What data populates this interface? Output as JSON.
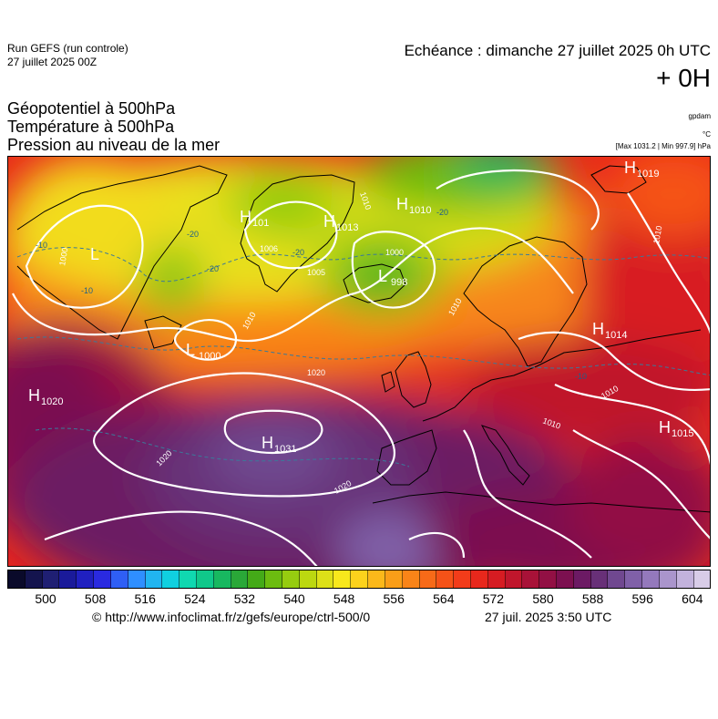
{
  "header": {
    "run_title": "Run GEFS (run controle)",
    "run_date": "27 juillet 2025 00Z",
    "echeance": "Echéance : dimanche 27 juillet 2025 0h UTC",
    "offset": "+ 0H"
  },
  "fields": [
    "Géopotentiel à 500hPa",
    "Température à 500hPa",
    "Pression au niveau de la mer"
  ],
  "units": {
    "geopotential": "gpdam",
    "temperature": "°C",
    "pressure_stats": "[Max 1031.2 | Min 997.9] hPa"
  },
  "pressure_systems": [
    {
      "type": "H",
      "value": "1020"
    },
    {
      "type": "L",
      "value": "1000"
    },
    {
      "type": "H",
      "value": "101"
    },
    {
      "type": "H",
      "value": "1013"
    },
    {
      "type": "H",
      "value": "1010"
    },
    {
      "type": "L",
      "value": "998"
    },
    {
      "type": "H",
      "value": "1019"
    },
    {
      "type": "H",
      "value": "1014"
    },
    {
      "type": "H",
      "value": "1015"
    },
    {
      "type": "H",
      "value": "1031"
    },
    {
      "type": "L",
      "value": ""
    }
  ],
  "isobar_labels": [
    "1000",
    "1006",
    "1005",
    "1010",
    "1010",
    "1020",
    "1020",
    "1020",
    "1010",
    "1010",
    "1010",
    "1000",
    "1010"
  ],
  "temperature_labels": [
    "-20",
    "-20",
    "-20",
    "-20",
    "-10",
    "-10",
    "-10"
  ],
  "color_scale": {
    "colors": [
      "#0a0a2a",
      "#14144e",
      "#1f1f73",
      "#1a1a9a",
      "#2020c0",
      "#2a2ae0",
      "#2f5ff5",
      "#2f8fff",
      "#21b5f0",
      "#10d0e0",
      "#10d8b0",
      "#10c88a",
      "#18b860",
      "#2aa838",
      "#44aa18",
      "#6cbc10",
      "#96cc10",
      "#bcd810",
      "#dde018",
      "#f8e81c",
      "#fcd21c",
      "#fbb81a",
      "#fa9e18",
      "#f98418",
      "#f76a18",
      "#f55218",
      "#f23c1a",
      "#e8281c",
      "#d61c22",
      "#c0162c",
      "#a81238",
      "#921044",
      "#7c1050",
      "#6c1a64",
      "#683078",
      "#704890",
      "#8060a8",
      "#9479bc",
      "#aa95cc",
      "#c2b2dc",
      "#d8cce8"
    ],
    "labels": [
      "500",
      "508",
      "516",
      "524",
      "532",
      "540",
      "548",
      "556",
      "564",
      "572",
      "580",
      "588",
      "596",
      "604"
    ]
  },
  "footer": {
    "copyright": "© http://www.infoclimat.fr/z/gefs/europe/ctrl-500/0",
    "issued": "27 juil. 2025  3:50 UTC"
  },
  "colors": {
    "isobar": "#ffffff",
    "temperature_isoline": "#3a7a9a",
    "coastline": "#000000"
  }
}
